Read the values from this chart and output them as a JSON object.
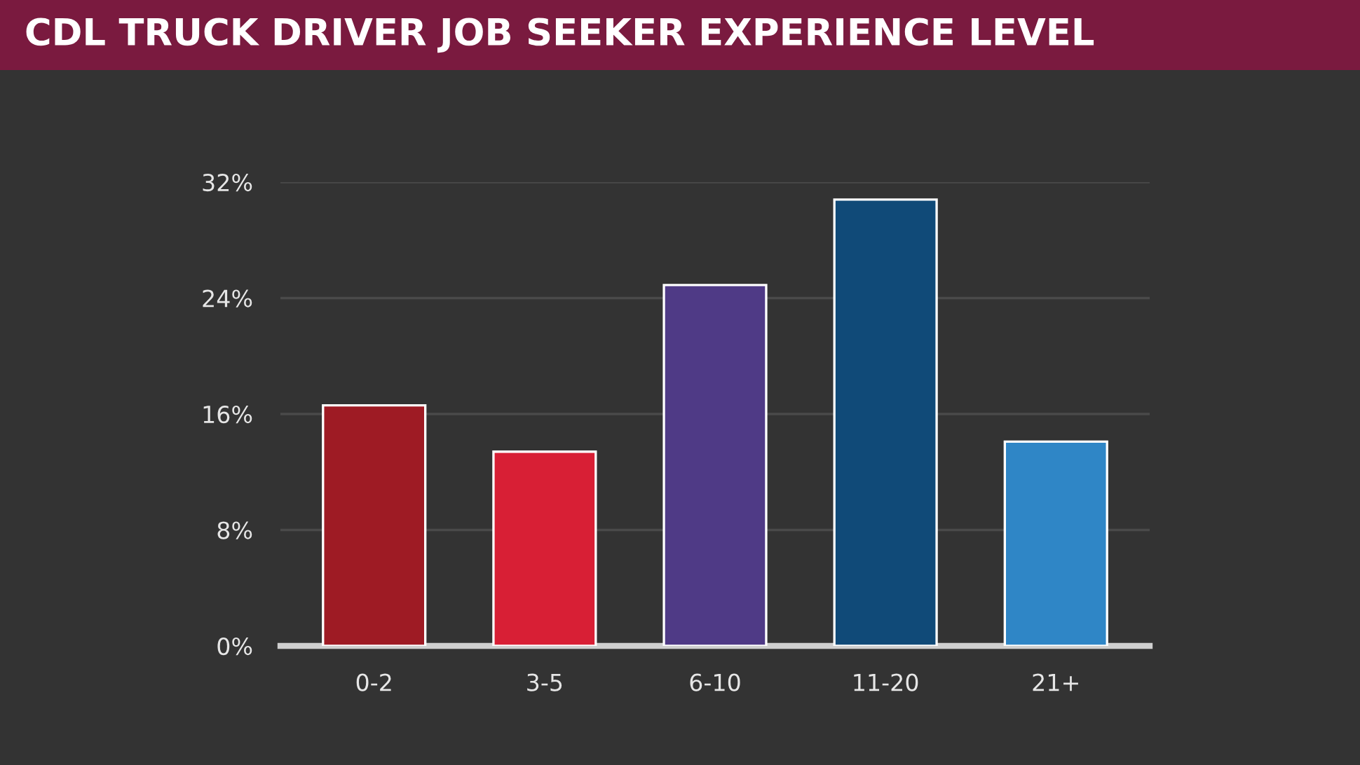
{
  "chart_data": {
    "type": "bar",
    "title": "CDL TRUCK DRIVER JOB SEEKER EXPERIENCE LEVEL",
    "categories": [
      "0-2",
      "3-5",
      "6-10",
      "11-20",
      "21+"
    ],
    "values": [
      16.6,
      13.4,
      24.9,
      30.8,
      14.1
    ],
    "colors": [
      "#9e1b24",
      "#d81f35",
      "#4f3a86",
      "#104a78",
      "#2f86c6"
    ],
    "ylim": [
      0,
      32
    ],
    "yticks": [
      {
        "value": 0,
        "label": "0%"
      },
      {
        "value": 8,
        "label": "8%"
      },
      {
        "value": 16,
        "label": "16%"
      },
      {
        "value": 24,
        "label": "24%"
      },
      {
        "value": 32,
        "label": "32%"
      }
    ],
    "grid": "y"
  }
}
